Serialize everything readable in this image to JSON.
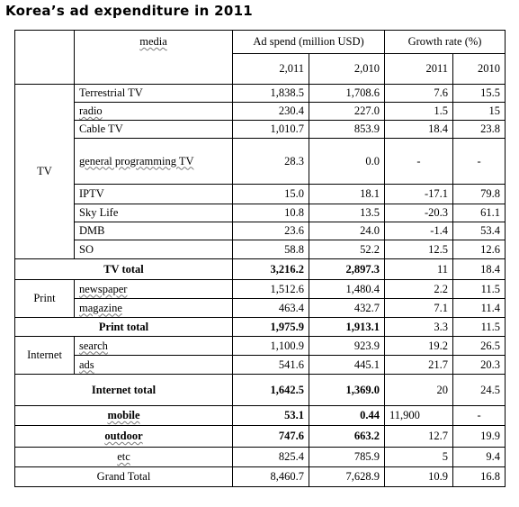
{
  "title": "Korea’s ad expenditure in 2011",
  "header": {
    "media": "media",
    "ad_spend": "Ad spend (million USD)",
    "growth_rate": "Growth rate (%)",
    "y2011": "2,011",
    "y2010": "2,010",
    "g2011": "2011",
    "g2010": "2010"
  },
  "groups": {
    "tv": "TV",
    "print": "Print",
    "internet": "Internet"
  },
  "rows": [
    {
      "media": "Terrestrial TV",
      "spend2011": "1,838.5",
      "spend2010": "1,708.6",
      "growth2011": "7.6",
      "growth2010": "15.5"
    },
    {
      "media": "radio",
      "spend2011": "230.4",
      "spend2010": "227.0",
      "growth2011": "1.5",
      "growth2010": "15"
    },
    {
      "media": "Cable TV",
      "spend2011": "1,010.7",
      "spend2010": "853.9",
      "growth2011": "18.4",
      "growth2010": "23.8"
    },
    {
      "media": "general programming TV",
      "spend2011": "28.3",
      "spend2010": "0.0",
      "growth2011": "-",
      "growth2010": "-"
    },
    {
      "media": "IPTV",
      "spend2011": "15.0",
      "spend2010": "18.1",
      "growth2011": "-17.1",
      "growth2010": "79.8"
    },
    {
      "media": "Sky Life",
      "spend2011": "10.8",
      "spend2010": "13.5",
      "growth2011": "-20.3",
      "growth2010": "61.1"
    },
    {
      "media": "DMB",
      "spend2011": "23.6",
      "spend2010": "24.0",
      "growth2011": "-1.4",
      "growth2010": "53.4"
    },
    {
      "media": "SO",
      "spend2011": "58.8",
      "spend2010": "52.2",
      "growth2011": "12.5",
      "growth2010": "12.6"
    },
    {
      "media": "TV total",
      "spend2011": "3,216.2",
      "spend2010": "2,897.3",
      "growth2011": "11",
      "growth2010": "18.4"
    },
    {
      "media": "newspaper",
      "spend2011": "1,512.6",
      "spend2010": "1,480.4",
      "growth2011": "2.2",
      "growth2010": "11.5"
    },
    {
      "media": "magazine",
      "spend2011": "463.4",
      "spend2010": "432.7",
      "growth2011": "7.1",
      "growth2010": "11.4"
    },
    {
      "media": "Print total",
      "spend2011": "1,975.9",
      "spend2010": "1,913.1",
      "growth2011": "3.3",
      "growth2010": "11.5"
    },
    {
      "media": "search",
      "spend2011": "1,100.9",
      "spend2010": "923.9",
      "growth2011": "19.2",
      "growth2010": "26.5"
    },
    {
      "media": "ads",
      "spend2011": "541.6",
      "spend2010": "445.1",
      "growth2011": "21.7",
      "growth2010": "20.3"
    },
    {
      "media": "Internet total",
      "spend2011": "1,642.5",
      "spend2010": "1,369.0",
      "growth2011": "20",
      "growth2010": "24.5"
    },
    {
      "media": "mobile",
      "spend2011": "53.1",
      "spend2010": "0.44",
      "growth2011": "11,900",
      "growth2010": "-"
    },
    {
      "media": "outdoor",
      "spend2011": "747.6",
      "spend2010": "663.2",
      "growth2011": "12.7",
      "growth2010": "19.9"
    },
    {
      "media": "etc",
      "spend2011": "825.4",
      "spend2010": "785.9",
      "growth2011": "5",
      "growth2010": "9.4"
    },
    {
      "media": "Grand Total",
      "spend2011": "8,460.7",
      "spend2010": "7,628.9",
      "growth2011": "10.9",
      "growth2010": "16.8"
    }
  ]
}
